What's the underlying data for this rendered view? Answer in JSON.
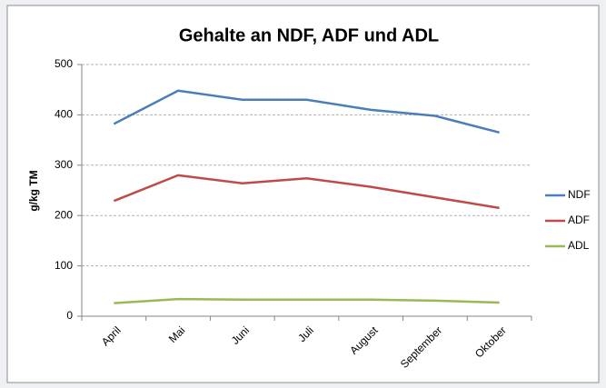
{
  "chart_data": {
    "type": "line",
    "title": "Gehalte an NDF, ADF und ADL",
    "y_label": "g/kg TM",
    "categories": [
      "April",
      "Mai",
      "Juni",
      "Juli",
      "August",
      "September",
      "Oktober"
    ],
    "series": [
      {
        "name": "NDF",
        "color": "#4a7ebb",
        "values": [
          382,
          448,
          430,
          430,
          410,
          398,
          365
        ]
      },
      {
        "name": "ADF",
        "color": "#be4b48",
        "values": [
          229,
          280,
          264,
          274,
          257,
          236,
          215
        ]
      },
      {
        "name": "ADL",
        "color": "#98b954",
        "values": [
          26,
          34,
          33,
          33,
          33,
          31,
          27
        ]
      }
    ],
    "ylim": [
      0,
      500
    ],
    "yticks": [
      0,
      100,
      200,
      300,
      400,
      500
    ],
    "grid": true,
    "legend": "right"
  }
}
